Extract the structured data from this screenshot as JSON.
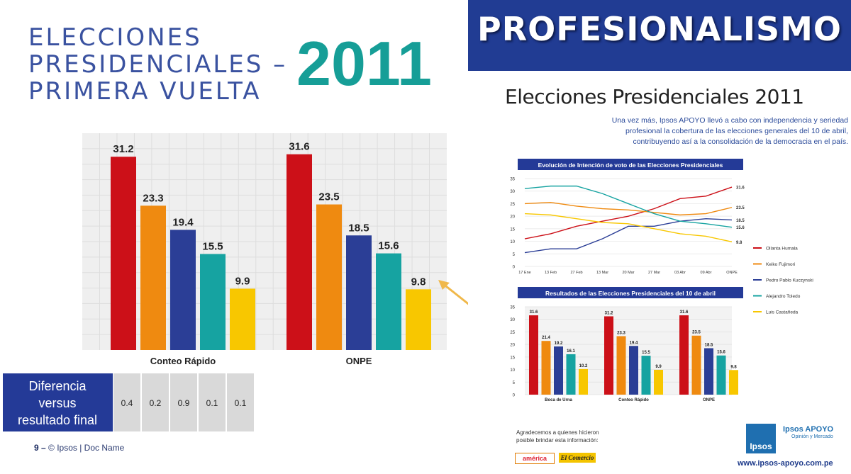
{
  "title": {
    "lines": [
      "ELECCIONES",
      "PRESIDENCIALES –",
      "PRIMERA VUELTA"
    ],
    "year": "2011"
  },
  "colors": {
    "humala": "#cc1018",
    "fujimori": "#ef8a10",
    "kuczynski": "#2b3e96",
    "toledo": "#16a3a1",
    "castaneda": "#f8c700",
    "title_blue": "#3a52a0",
    "year_teal": "#169e97",
    "banner": "#213c93"
  },
  "chart_data": [
    {
      "type": "bar",
      "title": "",
      "groups": [
        "Conteo Rápido",
        "ONPE"
      ],
      "series_order": [
        "Ollanta Humala",
        "Keiko Fujimori",
        "Pedro Pablo Kuczynski",
        "Alejandro Toledo",
        "Luis Castañeda"
      ],
      "values": [
        [
          31.2,
          23.3,
          19.4,
          15.5,
          9.9
        ],
        [
          31.6,
          23.5,
          18.5,
          15.6,
          9.8
        ]
      ],
      "value_labels": [
        [
          "31.2",
          "23.3",
          "19.4",
          "15.5",
          "9.9"
        ],
        [
          "31.6",
          "23.5",
          "18.5",
          "15.6",
          "9.8"
        ]
      ],
      "ylim": [
        0,
        35
      ]
    },
    {
      "type": "line",
      "title": "Evolución de Intención de voto de las Elecciones Presidenciales",
      "x": [
        "17 Ene",
        "13 Feb",
        "27 Feb",
        "13 Mar",
        "20 Mar",
        "27 Mar",
        "03 Abr",
        "09 Abr",
        "ONPE"
      ],
      "yticks": [
        "0",
        "5",
        "10",
        "15",
        "20",
        "25",
        "30",
        "35"
      ],
      "ylim": [
        0,
        35
      ],
      "series": [
        {
          "name": "Ollanta Humala",
          "values": [
            11,
            13,
            16,
            18,
            20,
            23,
            27,
            28,
            31.6
          ],
          "end_label": "31.6"
        },
        {
          "name": "Keiko Fujimori",
          "values": [
            25,
            25.5,
            24,
            23,
            22.5,
            21.5,
            20.5,
            21,
            23.5
          ],
          "end_label": "23.5"
        },
        {
          "name": "Pedro Pablo Kuczynski",
          "values": [
            5.5,
            7,
            7,
            11,
            16,
            16,
            18,
            19,
            18.5
          ],
          "end_label": "18.5"
        },
        {
          "name": "Alejandro Toledo",
          "values": [
            31,
            32,
            32,
            29,
            25,
            21,
            18,
            17,
            15.6
          ],
          "end_label": "15.6"
        },
        {
          "name": "Luis Castañeda",
          "values": [
            21,
            20.5,
            19,
            17.5,
            17,
            15,
            13,
            12,
            9.8
          ],
          "end_label": "9.8"
        }
      ]
    },
    {
      "type": "bar",
      "title": "Resultados de las Elecciones Presidenciales del 10 de abril",
      "groups": [
        "Boca de Urna",
        "Conteo Rápido",
        "ONPE"
      ],
      "yticks": [
        "0",
        "5",
        "10",
        "15",
        "20",
        "25",
        "30",
        "35"
      ],
      "ylim": [
        0,
        35
      ],
      "values": [
        [
          31.6,
          21.4,
          19.2,
          16.1,
          10.2
        ],
        [
          31.2,
          23.3,
          19.4,
          15.5,
          9.9
        ],
        [
          31.6,
          23.5,
          18.5,
          15.6,
          9.8
        ]
      ],
      "value_labels": [
        [
          "31.6",
          "21.4",
          "19.2",
          "16.1",
          "10.2"
        ],
        [
          "31.2",
          "23.3",
          "19.4",
          "15.5",
          "9.9"
        ],
        [
          "31.6",
          "23.5",
          "18.5",
          "15.6",
          "9.8"
        ]
      ]
    }
  ],
  "diff_table": {
    "header": "Diferencia versus resultado final",
    "values": [
      "0.4",
      "0.2",
      "0.9",
      "0.1",
      "0.1"
    ]
  },
  "footer": {
    "page": "9 –",
    "text": "© Ipsos | Doc Name"
  },
  "right_page": {
    "banner": "PROFESIONALISMO",
    "title": "Elecciones Presidenciales 2011",
    "intro": "Una vez más, Ipsos APOYO llevó a cabo con independencia y seriedad profesional la cobertura de las elecciones generales del 10 de abril, contribuyendo así a la consolidación de la democracia en el país.",
    "legend": [
      "Ollanta Humala",
      "Keiko Fujimori",
      "Pedro Pablo Kuczynski",
      "Alejandro Toledo",
      "Luis Castañeda"
    ],
    "thanks": "Agradecemos a quienes hicieron posible brindar esta información:",
    "logo_america": "américa",
    "logo_comercio": "El Comercio",
    "ipsos_logo": "Ipsos",
    "apoyo_logo": "Ipsos APOYO",
    "apoyo_sub": "Opinión y Mercado",
    "website": "www.ipsos-apoyo.com.pe"
  }
}
